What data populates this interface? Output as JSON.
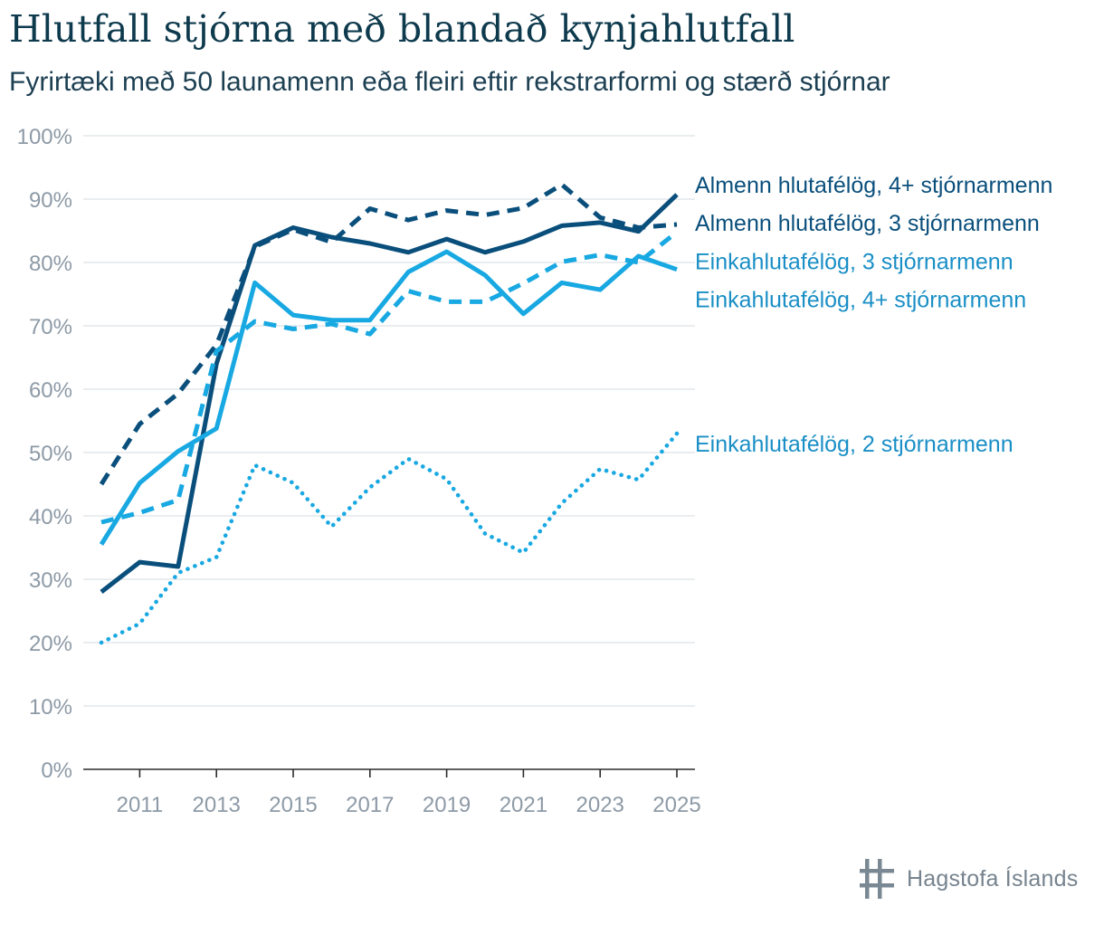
{
  "title": "Hlutfall stjórna með blandað kynjahlutfall",
  "subtitle": "Fyrirtæki með 50 launamenn eða fleiri eftir rekstrarformi og stærð stjórnar",
  "logo_text": "Hagstofa Íslands",
  "chart_data": {
    "type": "line",
    "title": "Hlutfall stjórna með blandað kynjahlutfall",
    "subtitle": "Fyrirtæki með 50 launamenn eða fleiri eftir rekstrarformi og stærð stjórnar",
    "x": [
      2010,
      2011,
      2012,
      2013,
      2014,
      2015,
      2016,
      2017,
      2018,
      2019,
      2020,
      2021,
      2022,
      2023,
      2024,
      2025
    ],
    "x_ticks": [
      2011,
      2013,
      2015,
      2017,
      2019,
      2021,
      2023,
      2025
    ],
    "y_ticks": [
      "0%",
      "10%",
      "20%",
      "30%",
      "40%",
      "50%",
      "60%",
      "70%",
      "80%",
      "90%",
      "100%"
    ],
    "ylim": [
      0,
      100
    ],
    "y_unit": "%",
    "grid": true,
    "legend": "direct labels right of lines",
    "series": [
      {
        "name": "Almenn hlutafélög, 4+ stjórnarmenn",
        "color": "#0a4f7c",
        "dash": "solid",
        "values": [
          28,
          32.7,
          32,
          64,
          82.7,
          85.5,
          84,
          83,
          81.6,
          83.7,
          81.6,
          83.3,
          85.8,
          86.3,
          84.9,
          90.7
        ]
      },
      {
        "name": "Almenn hlutafélög, 3 stjórnarmenn",
        "color": "#0a4f7c",
        "dash": "dashed",
        "values": [
          45,
          54.5,
          59.3,
          67,
          82.5,
          85.2,
          83.2,
          88.5,
          86.7,
          88.2,
          87.5,
          88.6,
          92.3,
          87.1,
          85.5,
          86
        ]
      },
      {
        "name": "Einkahlutafélög, 3 stjórnarmenn",
        "color": "#18a8e2",
        "dash": "dashed",
        "values": [
          39,
          40.5,
          42.5,
          66,
          70.7,
          69.5,
          70.3,
          68.7,
          75.5,
          73.8,
          73.8,
          76.7,
          80.1,
          81.2,
          80,
          84.8
        ]
      },
      {
        "name": "Einkahlutafélög, 4+ stjórnarmenn",
        "color": "#18a8e2",
        "dash": "solid",
        "values": [
          35.5,
          45.2,
          50.2,
          53.8,
          76.8,
          71.7,
          70.9,
          70.9,
          78.5,
          81.7,
          78,
          71.9,
          76.8,
          75.7,
          81,
          78.9
        ]
      },
      {
        "name": "Einkahlutafélög, 2 stjórnarmenn",
        "color": "#18a8e2",
        "dash": "dotted",
        "values": [
          20,
          23,
          31,
          33.5,
          48,
          45.2,
          38.3,
          44.5,
          49,
          45.8,
          37.2,
          34.2,
          42,
          47.4,
          45.7,
          53
        ]
      }
    ],
    "labels": [
      {
        "text": "Almenn hlutafélög, 4+ stjórnarmenn",
        "color": "#0a4f7c",
        "anchor_value": 92.3
      },
      {
        "text": "Almenn hlutafélög, 3 stjórnarmenn",
        "color": "#0a4f7c",
        "anchor_value": 86.3
      },
      {
        "text": "Einkahlutafélög, 3 stjórnarmenn",
        "color": "#1a8fc6",
        "anchor_value": 80.2
      },
      {
        "text": "Einkahlutafélög, 4+ stjórnarmenn",
        "color": "#1a8fc6",
        "anchor_value": 74.2
      },
      {
        "text": "Einkahlutafélög, 2 stjórnarmenn",
        "color": "#1a8fc6",
        "anchor_value": 51.4
      }
    ]
  }
}
